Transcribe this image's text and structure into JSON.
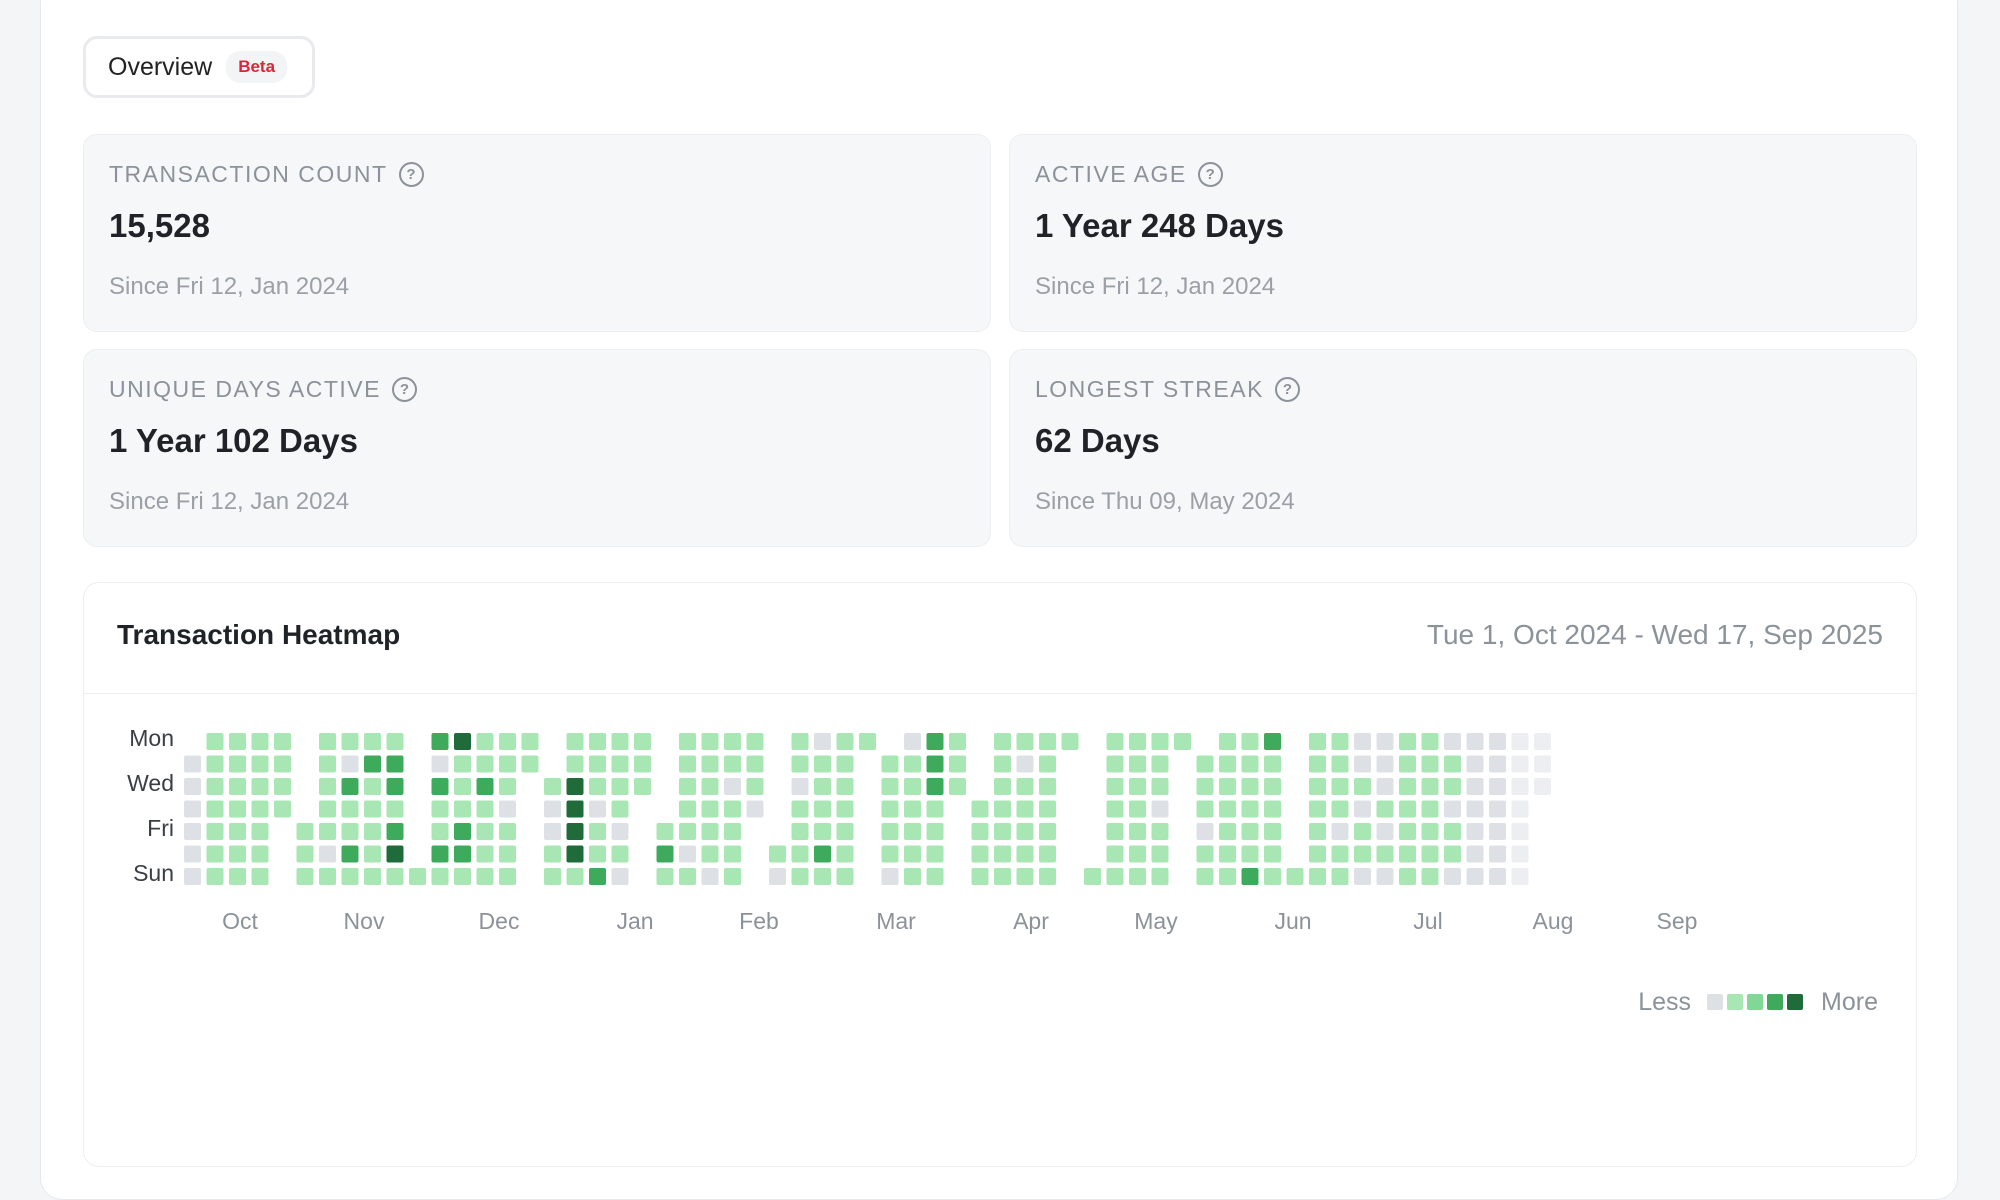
{
  "tabs": {
    "overview_label": "Overview",
    "badge": "Beta"
  },
  "stats": [
    {
      "label": "TRANSACTION COUNT",
      "value": "15,528",
      "since": "Since Fri 12, Jan 2024"
    },
    {
      "label": "ACTIVE AGE",
      "value": "1 Year 248 Days",
      "since": "Since Fri 12, Jan 2024"
    },
    {
      "label": "UNIQUE DAYS ACTIVE",
      "value": "1 Year 102 Days",
      "since": "Since Fri 12, Jan 2024"
    },
    {
      "label": "LONGEST STREAK",
      "value": "62 Days",
      "since": "Since Thu 09, May 2024"
    }
  ],
  "help_icon": "question-circle-icon",
  "heatmap": {
    "title": "Transaction Heatmap",
    "range": "Tue 1, Oct 2024 - Wed 17, Sep 2025",
    "start_date": "2024-10-01",
    "end_date": "2025-09-17",
    "day_labels": [
      "Mon",
      "Wed",
      "Fri",
      "Sun"
    ],
    "month_labels": [
      "Oct",
      "Nov",
      "Dec",
      "Jan",
      "Feb",
      "Mar",
      "Apr",
      "May",
      "Jun",
      "Jul",
      "Aug",
      "Sep"
    ],
    "legend_less": "Less",
    "legend_more": "More",
    "colors": [
      "#dde1e6",
      "#a8e6b4",
      "#7fd895",
      "#3daa5c",
      "#1f6b3a"
    ],
    "future_color": "#eceef1",
    "weeks": [
      [
        -1,
        0,
        0,
        0,
        0,
        0,
        0
      ],
      [
        1,
        1,
        1,
        1,
        1,
        1,
        1
      ],
      [
        1,
        1,
        1,
        1,
        1,
        1,
        1
      ],
      [
        1,
        1,
        1,
        1,
        1,
        1,
        1
      ],
      [
        1,
        1,
        1,
        1,
        -1,
        -1,
        -1
      ],
      [
        -1,
        -1,
        -1,
        -1,
        1,
        1,
        1
      ],
      [
        1,
        1,
        1,
        1,
        1,
        0,
        1
      ],
      [
        1,
        0,
        3,
        1,
        1,
        3,
        1
      ],
      [
        1,
        3,
        1,
        1,
        1,
        1,
        1
      ],
      [
        1,
        3,
        3,
        1,
        3,
        4,
        1
      ],
      [
        -1,
        -1,
        -1,
        -1,
        -1,
        -1,
        1
      ],
      [
        3,
        0,
        3,
        1,
        1,
        3,
        1
      ],
      [
        4,
        1,
        1,
        1,
        3,
        3,
        1
      ],
      [
        1,
        1,
        3,
        1,
        1,
        1,
        1
      ],
      [
        1,
        1,
        1,
        0,
        1,
        1,
        1
      ],
      [
        1,
        1,
        -1,
        -1,
        -1,
        -1,
        -1
      ],
      [
        -1,
        -1,
        1,
        0,
        0,
        1,
        1
      ],
      [
        1,
        1,
        4,
        4,
        4,
        4,
        1
      ],
      [
        1,
        1,
        1,
        0,
        1,
        1,
        3
      ],
      [
        1,
        1,
        1,
        1,
        0,
        1,
        0
      ],
      [
        1,
        1,
        1,
        -1,
        -1,
        -1,
        -1
      ],
      [
        -1,
        -1,
        -1,
        -1,
        1,
        3,
        1
      ],
      [
        1,
        1,
        1,
        1,
        1,
        0,
        1
      ],
      [
        1,
        1,
        1,
        1,
        1,
        1,
        0
      ],
      [
        1,
        1,
        0,
        1,
        1,
        1,
        1
      ],
      [
        1,
        1,
        1,
        0,
        -1,
        -1,
        -1
      ],
      [
        -1,
        -1,
        -1,
        -1,
        -1,
        1,
        0
      ],
      [
        1,
        1,
        0,
        1,
        1,
        1,
        1
      ],
      [
        0,
        1,
        1,
        1,
        1,
        3,
        1
      ],
      [
        1,
        1,
        1,
        1,
        1,
        1,
        1
      ],
      [
        1,
        -1,
        -1,
        -1,
        -1,
        -1,
        -1
      ],
      [
        -1,
        1,
        1,
        1,
        1,
        1,
        0
      ],
      [
        0,
        1,
        1,
        1,
        1,
        1,
        1
      ],
      [
        3,
        3,
        3,
        1,
        1,
        1,
        1
      ],
      [
        1,
        1,
        1,
        -1,
        -1,
        -1,
        -1
      ],
      [
        -1,
        -1,
        -1,
        1,
        1,
        1,
        1
      ],
      [
        1,
        1,
        1,
        1,
        1,
        1,
        1
      ],
      [
        1,
        0,
        1,
        1,
        1,
        1,
        1
      ],
      [
        1,
        1,
        1,
        1,
        1,
        1,
        1
      ],
      [
        1,
        -1,
        -1,
        -1,
        -1,
        -1,
        -1
      ],
      [
        -1,
        -1,
        -1,
        -1,
        -1,
        -1,
        1
      ],
      [
        1,
        1,
        1,
        1,
        1,
        1,
        1
      ],
      [
        1,
        1,
        1,
        1,
        1,
        1,
        1
      ],
      [
        1,
        1,
        1,
        0,
        1,
        1,
        1
      ],
      [
        1,
        -1,
        -1,
        -1,
        -1,
        -1,
        -1
      ],
      [
        -1,
        1,
        1,
        1,
        0,
        1,
        1
      ],
      [
        1,
        1,
        1,
        1,
        1,
        1,
        1
      ],
      [
        1,
        1,
        1,
        1,
        1,
        1,
        3
      ],
      [
        3,
        1,
        1,
        1,
        1,
        1,
        1
      ],
      [
        -1,
        -1,
        -1,
        -1,
        -1,
        -1,
        1
      ],
      [
        1,
        1,
        1,
        1,
        1,
        1,
        1
      ],
      [
        1,
        1,
        1,
        1,
        0,
        1,
        1
      ],
      [
        0,
        0,
        1,
        0,
        1,
        1,
        0
      ],
      [
        0,
        0,
        0,
        1,
        0,
        1,
        0
      ],
      [
        1,
        1,
        1,
        1,
        1,
        1,
        1
      ],
      [
        1,
        1,
        1,
        1,
        1,
        1,
        1
      ],
      [
        0,
        1,
        1,
        0,
        1,
        1,
        0
      ],
      [
        0,
        0,
        0,
        0,
        0,
        0,
        0
      ],
      [
        0,
        0,
        0,
        0,
        0,
        0,
        0
      ]
    ]
  }
}
